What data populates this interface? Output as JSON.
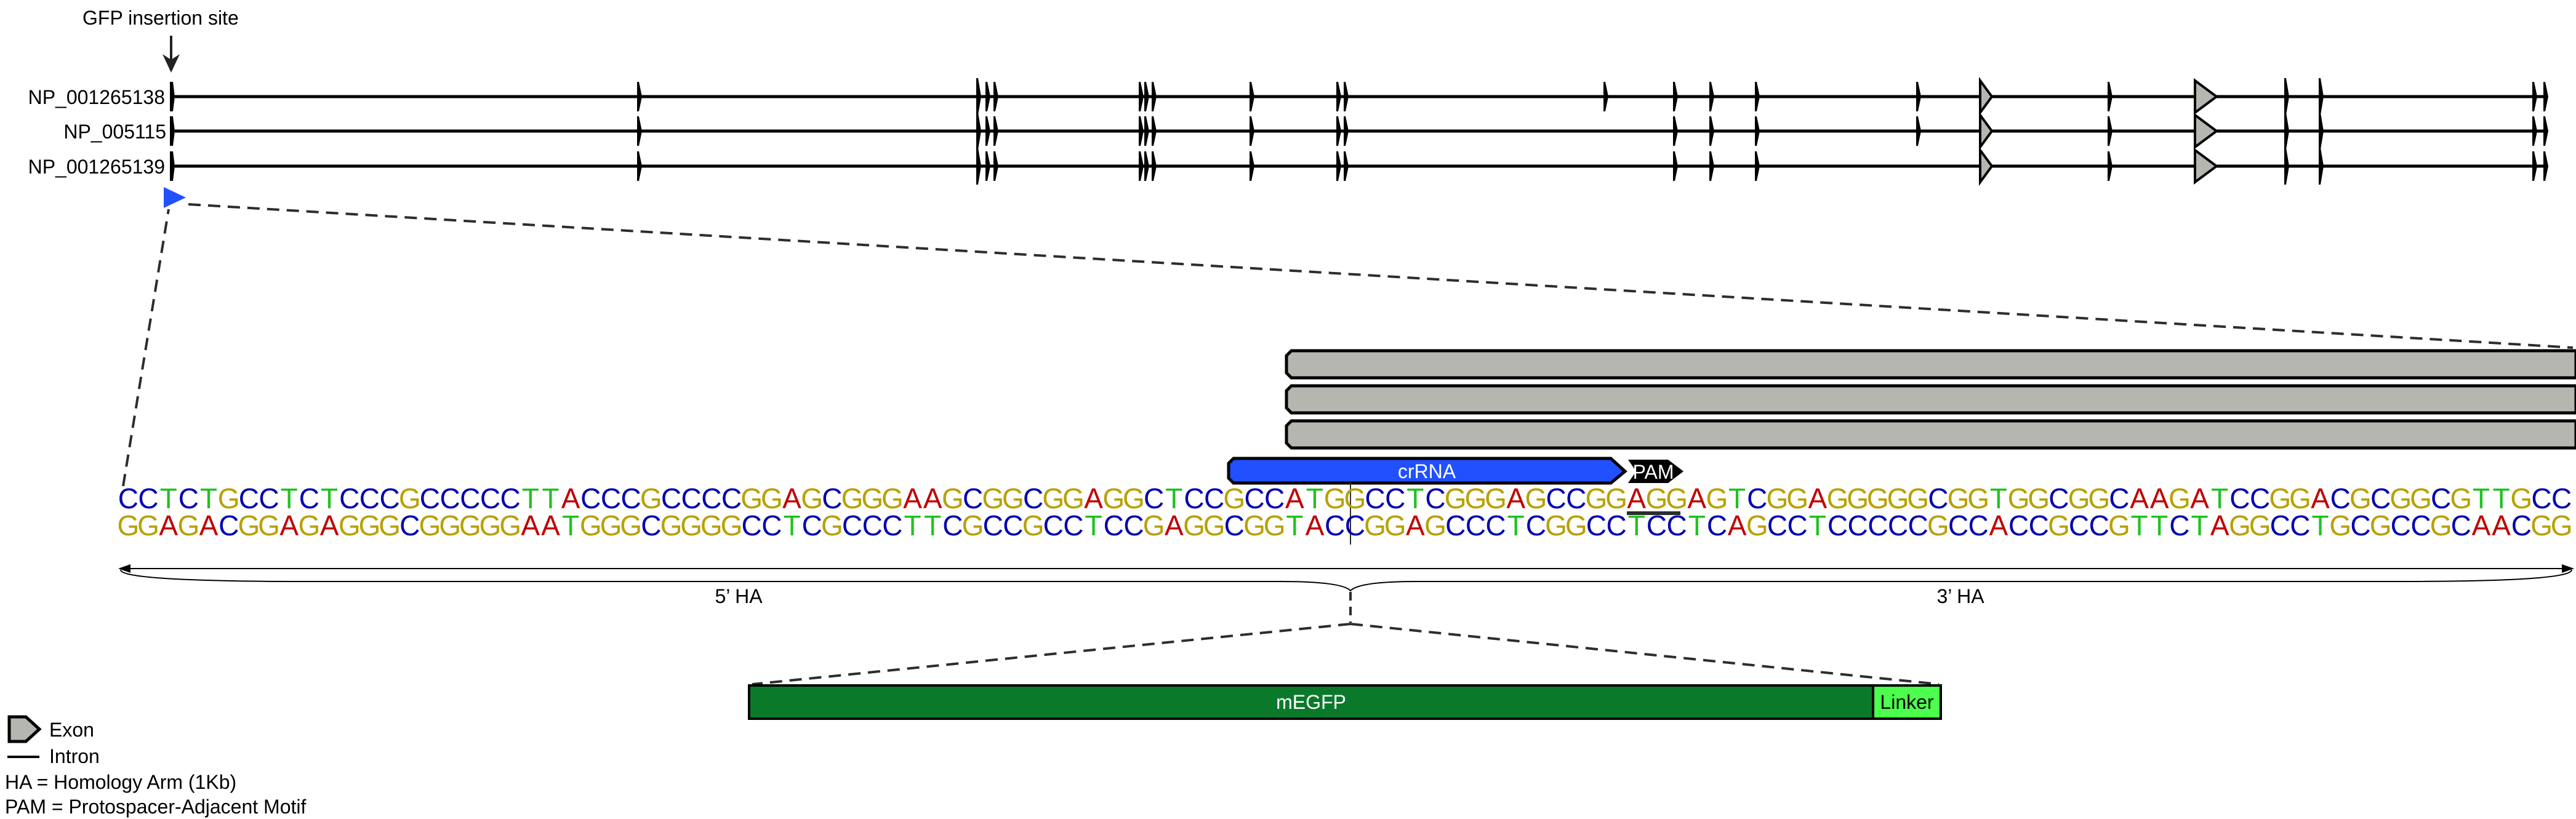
{
  "insertion_label": "GFP insertion site",
  "transcripts": [
    {
      "label": "NP_001265138"
    },
    {
      "label": "NP_005115"
    },
    {
      "label": "NP_001265139"
    }
  ],
  "features": {
    "crrna_label": "crRNA",
    "pam_label": "PAM",
    "five_ha_label": "5’ HA",
    "three_ha_label": "3’ HA",
    "megfp_label": "mEGFP",
    "linker_label": "Linker"
  },
  "sequence": {
    "top": "CCTCTGCCTCTCCCGCCCCCTTACCCGCCCCGGAGCGGGAAGCGGCGGAGGCTCCGCCATGGCCTCGGGAGCCGGAGGAGTCGGAGGGGGCGGTGGCGGCAAGATCCGGACGCGGCGTTGCC",
    "bottom": "GGAGACGGAGAGGGCGGGGGAATGGGCGGGGCCTCGCCCTTCGCCGCCTCCGAGGCGGTACCGGAGCCCTCGGCCTCCTCAGCCTCCCCCGCCACCGCCGTTCTAGGCCTGCGCCGCAACGG"
  },
  "legend": {
    "exon": "Exon",
    "intron": "Intron",
    "ha_note": "HA = Homology Arm (1Kb)",
    "pam_note": "PAM = Protospacer-Adjacent Motif"
  },
  "colors": {
    "A": "#c00000",
    "C": "#0000b0",
    "G": "#b8a000",
    "T": "#1fc21f",
    "crrna": "#2150ff",
    "exon_gray": "#b6b6b0",
    "megfp": "#0a7a2a",
    "linker": "#4cff4c"
  }
}
